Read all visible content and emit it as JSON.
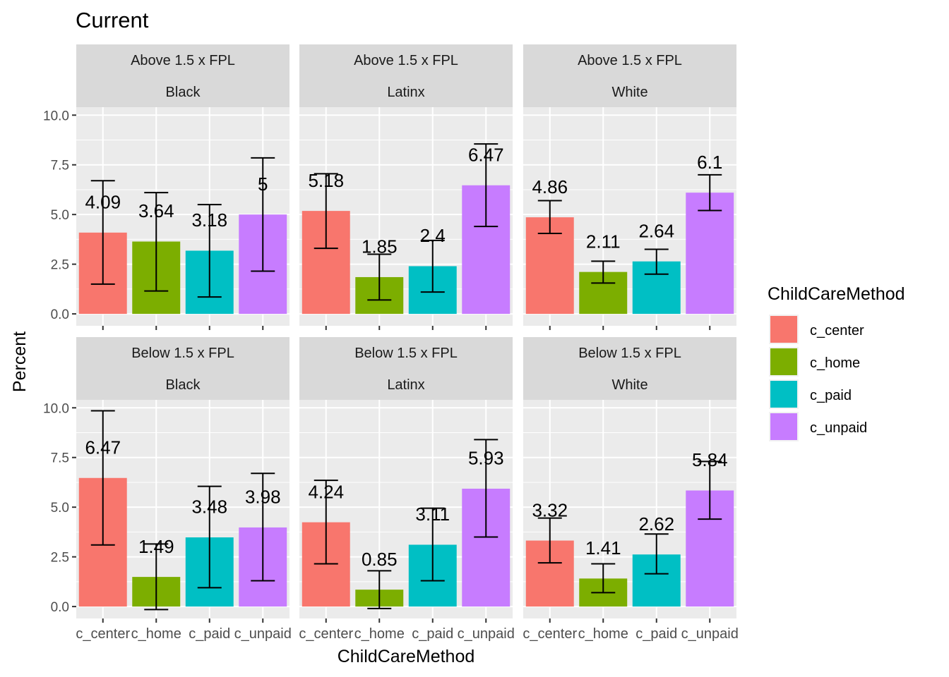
{
  "chart_data": {
    "type": "bar",
    "title": "Current",
    "xlabel": "ChildCareMethod",
    "ylabel": "Percent",
    "categories": [
      "c_center",
      "c_home",
      "c_paid",
      "c_unpaid"
    ],
    "ylim": [
      -0.6,
      10.4
    ],
    "yticks": [
      0,
      2.5,
      5,
      7.5,
      10
    ],
    "ytick_labels": [
      "0.0",
      "2.5",
      "5.0",
      "7.5",
      "10.0"
    ],
    "grid": true,
    "legend": {
      "title": "ChildCareMethod",
      "position": "right",
      "entries": [
        "c_center",
        "c_home",
        "c_paid",
        "c_unpaid"
      ]
    },
    "colors": [
      "#F8766D",
      "#7CAE00",
      "#00BFC4",
      "#C77CFF"
    ],
    "panels": [
      {
        "row_label": "Above 1.5 x FPL",
        "col_label": "Black",
        "values": [
          4.09,
          3.64,
          3.18,
          5
        ],
        "labels": [
          "4.09",
          "3.64",
          "3.18",
          "5"
        ],
        "err_low": [
          1.5,
          1.15,
          0.85,
          2.15
        ],
        "err_high": [
          6.7,
          6.1,
          5.5,
          7.85
        ]
      },
      {
        "row_label": "Above 1.5 x FPL",
        "col_label": "Latinx",
        "values": [
          5.18,
          1.85,
          2.4,
          6.47
        ],
        "labels": [
          "5.18",
          "1.85",
          "2.4",
          "6.47"
        ],
        "err_low": [
          3.3,
          0.7,
          1.1,
          4.4
        ],
        "err_high": [
          7.05,
          3.0,
          3.7,
          8.55
        ]
      },
      {
        "row_label": "Above 1.5 x FPL",
        "col_label": "White",
        "values": [
          4.86,
          2.11,
          2.64,
          6.1
        ],
        "labels": [
          "4.86",
          "2.11",
          "2.64",
          "6.1"
        ],
        "err_low": [
          4.05,
          1.55,
          2.0,
          5.2
        ],
        "err_high": [
          5.7,
          2.65,
          3.25,
          7.0
        ]
      },
      {
        "row_label": "Below 1.5 x FPL",
        "col_label": "Black",
        "values": [
          6.47,
          1.49,
          3.48,
          3.98
        ],
        "labels": [
          "6.47",
          "1.49",
          "3.48",
          "3.98"
        ],
        "err_low": [
          3.1,
          -0.15,
          0.95,
          1.3
        ],
        "err_high": [
          9.85,
          3.15,
          6.05,
          6.7
        ]
      },
      {
        "row_label": "Below 1.5 x FPL",
        "col_label": "Latinx",
        "values": [
          4.24,
          0.85,
          3.11,
          5.93
        ],
        "labels": [
          "4.24",
          "0.85",
          "3.11",
          "5.93"
        ],
        "err_low": [
          2.15,
          -0.1,
          1.3,
          3.5
        ],
        "err_high": [
          6.35,
          1.8,
          4.95,
          8.4
        ]
      },
      {
        "row_label": "Below 1.5 x FPL",
        "col_label": "White",
        "values": [
          3.32,
          1.41,
          2.62,
          5.84
        ],
        "labels": [
          "3.32",
          "1.41",
          "2.62",
          "5.84"
        ],
        "err_low": [
          2.2,
          0.7,
          1.65,
          4.4
        ],
        "err_high": [
          4.45,
          2.15,
          3.65,
          7.3
        ]
      }
    ]
  }
}
